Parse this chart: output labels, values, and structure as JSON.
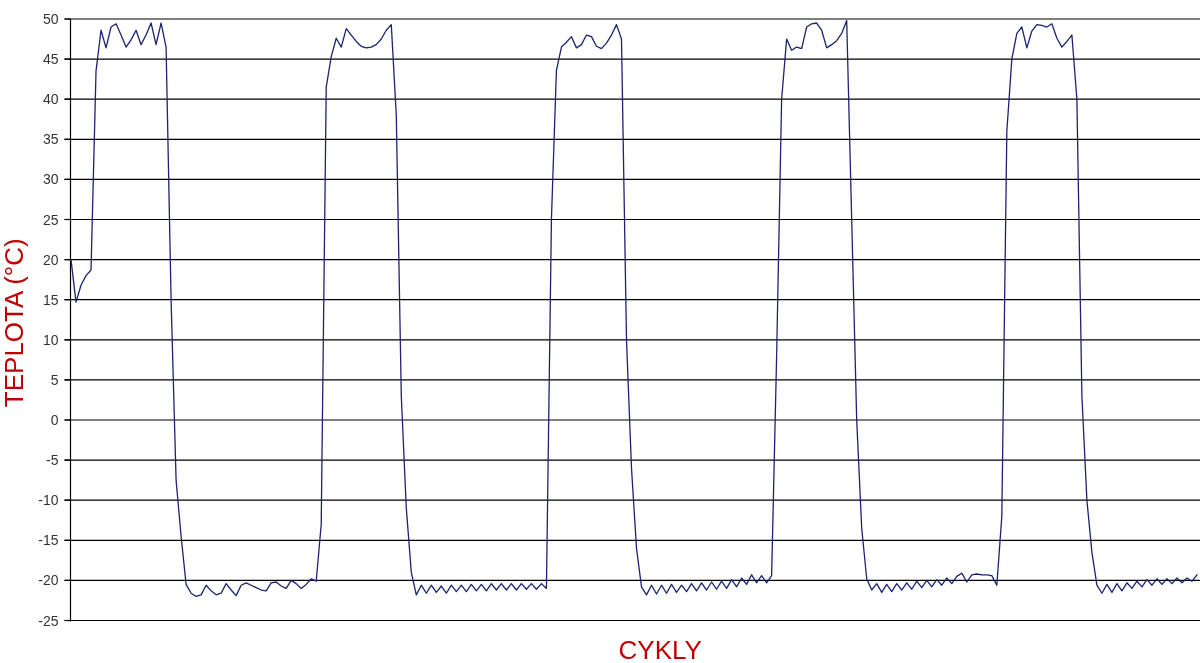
{
  "chart_data": {
    "type": "line",
    "xlabel": "CYKLY",
    "ylabel": "TEPLOTA (°C)",
    "categories": [
      null,
      null,
      null,
      null,
      null,
      null,
      null,
      null,
      null,
      null,
      null,
      null,
      null,
      null,
      null,
      null,
      null,
      null,
      null,
      null,
      null,
      null,
      null,
      null,
      null,
      null,
      null,
      null,
      null,
      null,
      null,
      null,
      null,
      null,
      null,
      null,
      null,
      null,
      null,
      null,
      null,
      null,
      null,
      null,
      null,
      null,
      null,
      null,
      null,
      null,
      null,
      null,
      null,
      null,
      null,
      null,
      null,
      null,
      null,
      null,
      null,
      null,
      null,
      null,
      null,
      null,
      null,
      null,
      null,
      null,
      null,
      null,
      null,
      null,
      null,
      null,
      null,
      null,
      null,
      null,
      null,
      null,
      null,
      null,
      null,
      null,
      null,
      null,
      null,
      null,
      null,
      null,
      null,
      null,
      null,
      null,
      null,
      null,
      null,
      null,
      null,
      null,
      null,
      null,
      null,
      null,
      null,
      null,
      null,
      null,
      null,
      null,
      null,
      null,
      null,
      null,
      null,
      null,
      null,
      null,
      null,
      null,
      null,
      null,
      null,
      null,
      null,
      null,
      null,
      null,
      null,
      null,
      null,
      null,
      null,
      null,
      null,
      null,
      null,
      null,
      null,
      null,
      null,
      null,
      null,
      null,
      null,
      null,
      null,
      null,
      null,
      null,
      null,
      null,
      null,
      null,
      null,
      null,
      null,
      null,
      null,
      null,
      null,
      null,
      null,
      null,
      null,
      null,
      null,
      null,
      null,
      null,
      null,
      null,
      null,
      null,
      null,
      null,
      null,
      null,
      null,
      null,
      null,
      null,
      null,
      null,
      null,
      null,
      null,
      null,
      null,
      null,
      null,
      null,
      null,
      null,
      null,
      null,
      null,
      null,
      null,
      null,
      null,
      null,
      null,
      null,
      null,
      null,
      null,
      null,
      null,
      null,
      null,
      null,
      null,
      null,
      null,
      null,
      null,
      null,
      null,
      null,
      null,
      null,
      null,
      null
    ],
    "series": [
      {
        "color": "#1c2470",
        "values": [
          20,
          14.7,
          16.8,
          18,
          18.7,
          43.5,
          48.6,
          46.4,
          49,
          49.4,
          48,
          46.5,
          47.4,
          48.6,
          46.8,
          48,
          49.5,
          46.8,
          49.5,
          46.5,
          15,
          -7.5,
          -14.5,
          -20.5,
          -21.6,
          -22,
          -21.8,
          -20.6,
          -21.3,
          -21.8,
          -21.6,
          -20.4,
          -21.2,
          -21.9,
          -20.6,
          -20.3,
          -20.6,
          -20.9,
          -21.2,
          -21.3,
          -20.3,
          -20.2,
          -20.7,
          -21,
          -20,
          -20.4,
          -21,
          -20.5,
          -19.8,
          -20.1,
          -13,
          41.5,
          45.3,
          47.6,
          46.5,
          48.8,
          48,
          47.2,
          46.6,
          46.4,
          46.5,
          46.8,
          47.5,
          48.6,
          49.3,
          38,
          3,
          -11,
          -19,
          -21.8,
          -20.6,
          -21.6,
          -20.6,
          -21.5,
          -20.7,
          -21.6,
          -20.6,
          -21.4,
          -20.6,
          -21.4,
          -20.5,
          -21.3,
          -20.5,
          -21.3,
          -20.4,
          -21.2,
          -20.4,
          -21.2,
          -20.4,
          -21.2,
          -20.4,
          -21.1,
          -20.4,
          -21.1,
          -20.4,
          -21,
          25,
          43.6,
          46.5,
          47.1,
          47.8,
          46.4,
          46.8,
          48,
          47.8,
          46.6,
          46.3,
          47,
          48,
          49.3,
          47.5,
          10,
          -6,
          -16,
          -20.8,
          -21.8,
          -20.6,
          -21.7,
          -20.6,
          -21.6,
          -20.5,
          -21.5,
          -20.6,
          -21.4,
          -20.4,
          -21.3,
          -20.3,
          -21.2,
          -20.2,
          -21.1,
          -20.1,
          -21,
          -19.9,
          -20.8,
          -19.7,
          -20.5,
          -19.3,
          -20.3,
          -19.4,
          -20.3,
          -19.4,
          8,
          40,
          47.5,
          46.1,
          46.5,
          46.3,
          49,
          49.4,
          49.5,
          48.6,
          46.4,
          46.8,
          47.3,
          48.2,
          49.8,
          25,
          0,
          -13.5,
          -19.8,
          -21.2,
          -20.4,
          -21.5,
          -20.5,
          -21.4,
          -20.4,
          -21.2,
          -20.3,
          -21.1,
          -20.1,
          -20.9,
          -20,
          -20.8,
          -19.9,
          -20.6,
          -19.7,
          -20.4,
          -19.5,
          -19.1,
          -20.2,
          -19.3,
          -19.2,
          -19.3,
          -19.3,
          -19.4,
          -20.6,
          -12,
          36,
          45,
          48.2,
          49,
          46.4,
          48.5,
          49.3,
          49.2,
          49,
          49.4,
          47.6,
          46.5,
          47.2,
          48,
          40,
          3,
          -10,
          -16.5,
          -20.6,
          -21.6,
          -20.5,
          -21.5,
          -20.4,
          -21.3,
          -20.3,
          -21,
          -20.1,
          -20.8,
          -19.9,
          -20.6,
          -19.8,
          -20.5,
          -19.8,
          -20.4,
          -19.7,
          -20.3,
          -19.7,
          -20.1,
          -19.3
        ]
      }
    ],
    "ylim": [
      -25,
      50
    ],
    "yticks": [
      -25,
      -20,
      -15,
      -10,
      -5,
      0,
      5,
      10,
      15,
      20,
      25,
      30,
      35,
      40,
      45,
      50
    ],
    "grid": "y",
    "tick_labels": "y"
  }
}
